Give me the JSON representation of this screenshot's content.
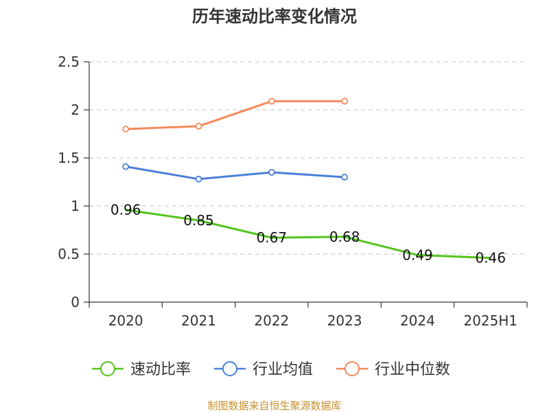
{
  "chart_data": {
    "type": "line",
    "title": "历年速动比率变化情况",
    "categories": [
      "2020",
      "2021",
      "2022",
      "2023",
      "2024",
      "2025H1"
    ],
    "ylim": [
      0,
      2.5
    ],
    "yticks": [
      "0",
      "0.5",
      "1",
      "1.5",
      "2",
      "2.5"
    ],
    "grid": true,
    "legend_position": "bottom",
    "series": [
      {
        "name": "速动比率",
        "color": "#52c41a",
        "values": [
          0.96,
          0.85,
          0.67,
          0.68,
          0.49,
          0.46
        ],
        "labels": [
          "0.96",
          "0.85",
          "0.67",
          "0.68",
          "0.49",
          "0.46"
        ]
      },
      {
        "name": "行业均值",
        "color": "#4a7fd6",
        "values": [
          1.41,
          1.28,
          1.35,
          1.3,
          null,
          null
        ]
      },
      {
        "name": "行业中位数",
        "color": "#f5895b",
        "values": [
          1.8,
          1.83,
          2.09,
          2.09,
          null,
          null
        ]
      }
    ]
  },
  "source_text": "制图数据来自恒生聚源数据库"
}
